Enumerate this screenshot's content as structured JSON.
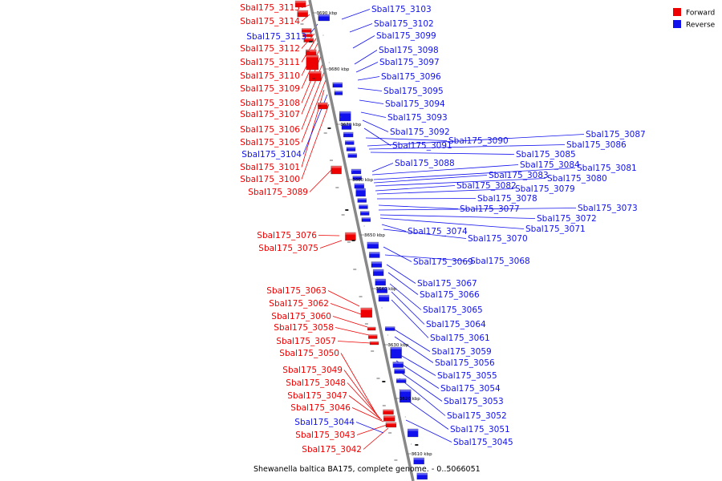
{
  "caption": "Shewanella baltica BA175, complete genome. - 0..5066051",
  "legend": [
    {
      "label": "Forward",
      "color": "#ee0000"
    },
    {
      "label": "Reverse",
      "color": "#1111ee"
    }
  ],
  "colors": {
    "forward": "#ee0000",
    "reverse": "#1111ee",
    "axis": "#888888"
  },
  "ticks": [
    "3690 kbp",
    "3680 kbp",
    "3670 kbp",
    "3660 kbp",
    "3650 kbp",
    "3640 kbp",
    "3630 kbp",
    "3620 kbp",
    "3610 kbp"
  ],
  "forward_genes": [
    "Sbal175_3115",
    "Sbal175_3114",
    "Sbal175_3112",
    "Sbal175_3111",
    "Sbal175_3110",
    "Sbal175_3109",
    "Sbal175_3108",
    "Sbal175_3107",
    "Sbal175_3106",
    "Sbal175_3105",
    "Sbal175_3101",
    "Sbal175_3100",
    "Sbal175_3089",
    "Sbal175_3076",
    "Sbal175_3075",
    "Sbal175_3063",
    "Sbal175_3062",
    "Sbal175_3060",
    "Sbal175_3058",
    "Sbal175_3057",
    "Sbal175_3050",
    "Sbal175_3049",
    "Sbal175_3048",
    "Sbal175_3047",
    "Sbal175_3046",
    "Sbal175_3043",
    "Sbal175_3042"
  ],
  "reverse_genes_left": [
    "Sbal175_3113",
    "Sbal175_3104",
    "Sbal175_3044"
  ],
  "reverse_genes": [
    "Sbal175_3103",
    "Sbal175_3102",
    "Sbal175_3099",
    "Sbal175_3098",
    "Sbal175_3097",
    "Sbal175_3096",
    "Sbal175_3095",
    "Sbal175_3094",
    "Sbal175_3093",
    "Sbal175_3092",
    "Sbal175_3091",
    "Sbal175_3090",
    "Sbal175_3087",
    "Sbal175_3086",
    "Sbal175_3085",
    "Sbal175_3088",
    "Sbal175_3084",
    "Sbal175_3081",
    "Sbal175_3083",
    "Sbal175_3080",
    "Sbal175_3082",
    "Sbal175_3079",
    "Sbal175_3078",
    "Sbal175_3077",
    "Sbal175_3073",
    "Sbal175_3072",
    "Sbal175_3071",
    "Sbal175_3074",
    "Sbal175_3070",
    "Sbal175_3069",
    "Sbal175_3068",
    "Sbal175_3067",
    "Sbal175_3066",
    "Sbal175_3065",
    "Sbal175_3064",
    "Sbal175_3061",
    "Sbal175_3059",
    "Sbal175_3056",
    "Sbal175_3055",
    "Sbal175_3054",
    "Sbal175_3053",
    "Sbal175_3052",
    "Sbal175_3051",
    "Sbal175_3045"
  ]
}
